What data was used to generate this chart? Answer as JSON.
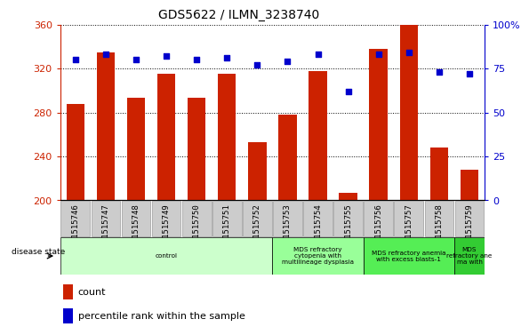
{
  "title": "GDS5622 / ILMN_3238740",
  "samples": [
    "GSM1515746",
    "GSM1515747",
    "GSM1515748",
    "GSM1515749",
    "GSM1515750",
    "GSM1515751",
    "GSM1515752",
    "GSM1515753",
    "GSM1515754",
    "GSM1515755",
    "GSM1515756",
    "GSM1515757",
    "GSM1515758",
    "GSM1515759"
  ],
  "counts": [
    288,
    335,
    293,
    315,
    293,
    315,
    253,
    278,
    318,
    207,
    338,
    362,
    248,
    228
  ],
  "percentiles": [
    80,
    83,
    80,
    82,
    80,
    81,
    77,
    79,
    83,
    62,
    83,
    84,
    73,
    72
  ],
  "ymin": 200,
  "ymax": 360,
  "yright_min": 0,
  "yright_max": 100,
  "yticks_left": [
    200,
    240,
    280,
    320,
    360
  ],
  "yticks_right": [
    0,
    25,
    50,
    75,
    100
  ],
  "bar_color": "#cc2200",
  "dot_color": "#0000cc",
  "bg_color": "#ffffff",
  "tick_bg_color": "#cccccc",
  "disease_groups": [
    {
      "label": "control",
      "start": 0,
      "end": 7,
      "color": "#ccffcc"
    },
    {
      "label": "MDS refractory\ncytopenia with\nmultilineage dysplasia",
      "start": 7,
      "end": 10,
      "color": "#99ff99"
    },
    {
      "label": "MDS refractory anemia\nwith excess blasts-1",
      "start": 10,
      "end": 13,
      "color": "#55ee55"
    },
    {
      "label": "MDS\nrefractory ane\nma with",
      "start": 13,
      "end": 14,
      "color": "#33cc33"
    }
  ],
  "legend_count_label": "count",
  "legend_pct_label": "percentile rank within the sample",
  "disease_state_label": "disease state"
}
